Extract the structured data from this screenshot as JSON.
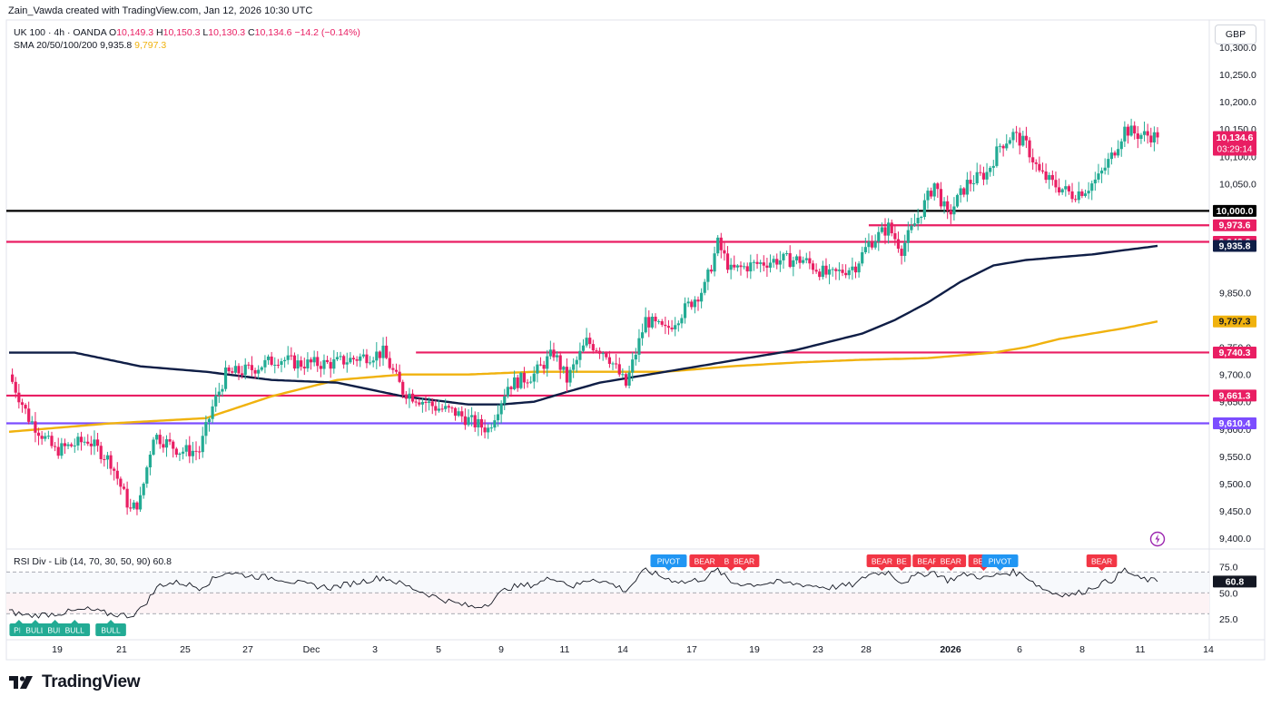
{
  "header": {
    "credit": "Zain_Vawda created with TradingView.com, Jan 12, 2026 10:30 UTC"
  },
  "legend": {
    "symbol": "UK 100 · 4h · OANDA",
    "o_label": "O",
    "o": "10,149.3",
    "h_label": "H",
    "h": "10,150.3",
    "l_label": "L",
    "l": "10,130.3",
    "c_label": "C",
    "c": "10,134.6",
    "change": "−14.2 (−0.14%)",
    "sma_label": "SMA 20/50/100/200",
    "sma_a": "9,935.8",
    "sma_b": "9,797.3"
  },
  "currency": "GBP",
  "rsi_legend": {
    "label": "RSI Div - Lib (14, 70, 30, 50, 90)",
    "value": "60.8"
  },
  "footer": {
    "brand": "TradingView"
  },
  "colors": {
    "up": "#22ab94",
    "down": "#e91e63",
    "bull_label": "#22ab94",
    "bear_label": "#f23645",
    "pivot_label": "#2196f3",
    "sma_dark": "#0f1e46",
    "sma_gold": "#f0b20e",
    "level_pink": "#e91e63",
    "level_purple": "#7c4dff",
    "level_black": "#000000"
  },
  "chart_data": {
    "type": "candlestick",
    "symbol": "UK 100",
    "timeframe": "4h",
    "yrange": [
      9380,
      10350
    ],
    "price_ticks": [
      "10,300.0",
      "10,250.0",
      "10,200.0",
      "10,150.0",
      "10,100.0",
      "10,050.0",
      "9,850.0",
      "9,800.0",
      "9,750.0",
      "9,700.0",
      "9,650.0",
      "9,600.0",
      "9,550.0",
      "9,500.0",
      "9,450.0",
      "9,400.0"
    ],
    "price_tick_values": [
      10300,
      10250,
      10200,
      10150,
      10100,
      10050,
      9850,
      9800,
      9750,
      9700,
      9650,
      9600,
      9550,
      9500,
      9450,
      9400
    ],
    "x_labels": [
      "19",
      "21",
      "25",
      "27",
      "Dec",
      "3",
      "5",
      "9",
      "11",
      "14",
      "17",
      "19",
      "23",
      "28",
      "2026",
      "6",
      "8",
      "11",
      "14"
    ],
    "x_label_bold": [
      false,
      false,
      false,
      false,
      false,
      false,
      false,
      false,
      false,
      false,
      false,
      false,
      false,
      false,
      true,
      false,
      false,
      false,
      false
    ],
    "key_points": [
      [
        0,
        9700
      ],
      [
        6,
        9620
      ],
      [
        14,
        9560
      ],
      [
        24,
        9580
      ],
      [
        31,
        9540
      ],
      [
        37,
        9450
      ],
      [
        40,
        9470
      ],
      [
        44,
        9590
      ],
      [
        52,
        9560
      ],
      [
        58,
        9560
      ],
      [
        62,
        9640
      ],
      [
        66,
        9700
      ],
      [
        74,
        9710
      ],
      [
        82,
        9730
      ],
      [
        88,
        9720
      ],
      [
        98,
        9720
      ],
      [
        106,
        9730
      ],
      [
        114,
        9740
      ],
      [
        120,
        9670
      ],
      [
        130,
        9640
      ],
      [
        136,
        9630
      ],
      [
        142,
        9610
      ],
      [
        146,
        9600
      ],
      [
        152,
        9680
      ],
      [
        160,
        9700
      ],
      [
        166,
        9740
      ],
      [
        170,
        9690
      ],
      [
        176,
        9760
      ],
      [
        182,
        9740
      ],
      [
        188,
        9680
      ],
      [
        194,
        9800
      ],
      [
        200,
        9780
      ],
      [
        206,
        9820
      ],
      [
        212,
        9860
      ],
      [
        216,
        9940
      ],
      [
        220,
        9890
      ],
      [
        226,
        9900
      ],
      [
        234,
        9910
      ],
      [
        242,
        9910
      ],
      [
        250,
        9880
      ],
      [
        258,
        9900
      ],
      [
        262,
        9940
      ],
      [
        268,
        9970
      ],
      [
        272,
        9930
      ],
      [
        278,
        10000
      ],
      [
        282,
        10050
      ],
      [
        286,
        9990
      ],
      [
        292,
        10050
      ],
      [
        298,
        10070
      ],
      [
        302,
        10120
      ],
      [
        306,
        10140
      ],
      [
        310,
        10120
      ],
      [
        314,
        10070
      ],
      [
        318,
        10050
      ],
      [
        324,
        10030
      ],
      [
        328,
        10040
      ],
      [
        332,
        10060
      ],
      [
        336,
        10100
      ],
      [
        340,
        10150
      ],
      [
        344,
        10140
      ],
      [
        348,
        10138
      ],
      [
        350,
        10134.6
      ]
    ],
    "sma_dark": {
      "value": 9935.8,
      "points": [
        [
          0,
          9740
        ],
        [
          20,
          9740
        ],
        [
          40,
          9715
        ],
        [
          60,
          9705
        ],
        [
          80,
          9690
        ],
        [
          100,
          9685
        ],
        [
          120,
          9660
        ],
        [
          140,
          9645
        ],
        [
          150,
          9645
        ],
        [
          160,
          9650
        ],
        [
          170,
          9668
        ],
        [
          180,
          9685
        ],
        [
          200,
          9705
        ],
        [
          220,
          9725
        ],
        [
          240,
          9745
        ],
        [
          260,
          9775
        ],
        [
          270,
          9800
        ],
        [
          280,
          9832
        ],
        [
          290,
          9870
        ],
        [
          300,
          9900
        ],
        [
          310,
          9910
        ],
        [
          320,
          9915
        ],
        [
          330,
          9920
        ],
        [
          340,
          9928
        ],
        [
          350,
          9935.8
        ]
      ]
    },
    "sma_gold": {
      "value": 9797.3,
      "points": [
        [
          0,
          9595
        ],
        [
          30,
          9610
        ],
        [
          60,
          9620
        ],
        [
          80,
          9660
        ],
        [
          100,
          9690
        ],
        [
          120,
          9700
        ],
        [
          140,
          9700
        ],
        [
          160,
          9705
        ],
        [
          180,
          9705
        ],
        [
          200,
          9705
        ],
        [
          220,
          9715
        ],
        [
          240,
          9722
        ],
        [
          260,
          9727
        ],
        [
          280,
          9730
        ],
        [
          290,
          9735
        ],
        [
          300,
          9740
        ],
        [
          310,
          9750
        ],
        [
          320,
          9765
        ],
        [
          330,
          9775
        ],
        [
          340,
          9785
        ],
        [
          350,
          9797.3
        ]
      ]
    },
    "levels": [
      {
        "name": "round-10000",
        "value": 10000.0,
        "label": "10,000.0",
        "color": "#000000"
      },
      {
        "name": "resistance-9973",
        "value": 9973.6,
        "label": "9,973.6",
        "color": "#e91e63"
      },
      {
        "name": "resistance-9943",
        "value": 9943.2,
        "label": "9,943.2",
        "color": "#e91e63"
      },
      {
        "name": "level-9740",
        "value": 9740.3,
        "label": "9,740.3",
        "color": "#e91e63"
      },
      {
        "name": "level-9661",
        "value": 9661.3,
        "label": "9,661.3",
        "color": "#e91e63"
      },
      {
        "name": "support-9610",
        "value": 9610.4,
        "label": "9,610.4",
        "color": "#7c4dff"
      }
    ],
    "sma_labels": [
      "9,935.8",
      "9,797.3"
    ],
    "last_price": "10,134.6",
    "countdown": "03:29:14",
    "rsi": {
      "label": "RSI Div - Lib (14, 70, 30, 50, 90)",
      "value": 60.8,
      "value_label": "60.8",
      "ticks": [
        "75.0",
        "50.0",
        "25.0"
      ],
      "tick_values": [
        75,
        50,
        25
      ],
      "yrange": [
        5,
        92
      ],
      "bands": [
        70,
        50,
        30
      ],
      "key_points": [
        [
          0,
          32
        ],
        [
          6,
          28
        ],
        [
          14,
          30
        ],
        [
          24,
          34
        ],
        [
          30,
          30
        ],
        [
          37,
          28
        ],
        [
          40,
          34
        ],
        [
          46,
          58
        ],
        [
          52,
          60
        ],
        [
          58,
          55
        ],
        [
          66,
          70
        ],
        [
          74,
          66
        ],
        [
          82,
          64
        ],
        [
          90,
          58
        ],
        [
          98,
          55
        ],
        [
          106,
          60
        ],
        [
          114,
          65
        ],
        [
          120,
          58
        ],
        [
          130,
          46
        ],
        [
          136,
          40
        ],
        [
          142,
          36
        ],
        [
          146,
          40
        ],
        [
          152,
          55
        ],
        [
          160,
          58
        ],
        [
          166,
          65
        ],
        [
          172,
          56
        ],
        [
          178,
          64
        ],
        [
          184,
          58
        ],
        [
          188,
          52
        ],
        [
          194,
          72
        ],
        [
          200,
          64
        ],
        [
          206,
          60
        ],
        [
          212,
          64
        ],
        [
          216,
          72
        ],
        [
          220,
          60
        ],
        [
          226,
          58
        ],
        [
          234,
          60
        ],
        [
          242,
          58
        ],
        [
          250,
          55
        ],
        [
          258,
          58
        ],
        [
          262,
          68
        ],
        [
          268,
          70
        ],
        [
          272,
          60
        ],
        [
          278,
          68
        ],
        [
          282,
          70
        ],
        [
          286,
          62
        ],
        [
          292,
          68
        ],
        [
          298,
          64
        ],
        [
          302,
          68
        ],
        [
          306,
          70
        ],
        [
          310,
          66
        ],
        [
          314,
          56
        ],
        [
          318,
          50
        ],
        [
          324,
          48
        ],
        [
          328,
          52
        ],
        [
          332,
          58
        ],
        [
          336,
          62
        ],
        [
          340,
          72
        ],
        [
          344,
          64
        ],
        [
          350,
          60.8
        ]
      ],
      "markers": [
        {
          "text": "PP",
          "type": "bull",
          "i": 3
        },
        {
          "text": "BULL",
          "type": "bull",
          "i": 8
        },
        {
          "text": "BUL",
          "type": "bull",
          "i": 14
        },
        {
          "text": "BULL",
          "type": "bull",
          "i": 20
        },
        {
          "text": "BULL",
          "type": "bull",
          "i": 31
        },
        {
          "text": "PIVOT",
          "type": "pivot",
          "i": 201
        },
        {
          "text": "BEAR",
          "type": "bear",
          "i": 212
        },
        {
          "text": "BLL",
          "type": "bear",
          "i": 220
        },
        {
          "text": "BEAR",
          "type": "bear",
          "i": 224
        },
        {
          "text": "BEAR",
          "type": "bear",
          "i": 266
        },
        {
          "text": "BE",
          "type": "bear",
          "i": 272
        },
        {
          "text": "BEAR",
          "type": "bear",
          "i": 280
        },
        {
          "text": "BEAR",
          "type": "bear",
          "i": 287
        },
        {
          "text": "BEAR",
          "type": "bear",
          "i": 297
        },
        {
          "text": "PIVOT",
          "type": "pivot",
          "i": 302
        },
        {
          "text": "BEAR",
          "type": "bear",
          "i": 333
        }
      ]
    }
  }
}
